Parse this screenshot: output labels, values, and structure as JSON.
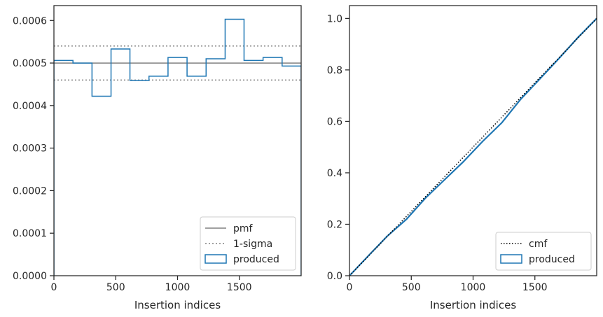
{
  "chart_data": [
    {
      "type": "histogram",
      "xlabel": "Insertion indices",
      "ylabel": "",
      "xlim": [
        0,
        2000
      ],
      "ylim": [
        0,
        0.000635
      ],
      "xticks": [
        0,
        500,
        1000,
        1500
      ],
      "yticks": [
        0,
        0.0001,
        0.0002,
        0.0003,
        0.0004,
        0.0005,
        0.0006
      ],
      "ytick_labels": [
        "0.0000",
        "0.0001",
        "0.0002",
        "0.0003",
        "0.0004",
        "0.0005",
        "0.0006"
      ],
      "pmf": 0.0005,
      "sigma_band": [
        0.00046,
        0.00054
      ],
      "bin_edges": [
        0,
        154,
        308,
        462,
        615,
        769,
        923,
        1077,
        1231,
        1385,
        1538,
        1692,
        1846,
        2000
      ],
      "bin_values": [
        0.000506,
        0.0005,
        0.000422,
        0.000533,
        0.000459,
        0.000469,
        0.000513,
        0.000469,
        0.00051,
        0.000603,
        0.000506,
        0.000513,
        0.000493
      ],
      "legend": [
        "pmf",
        "1-sigma",
        "produced"
      ],
      "legend_position": "lower-right",
      "colors": {
        "pmf": "#808080",
        "sigma": "#808080",
        "produced": "#1f77b4"
      }
    },
    {
      "type": "line",
      "xlabel": "Insertion indices",
      "ylabel": "",
      "xlim": [
        0,
        2000
      ],
      "ylim": [
        0,
        1.05
      ],
      "xticks": [
        0,
        500,
        1000,
        1500
      ],
      "yticks": [
        0,
        0.2,
        0.4,
        0.6,
        0.8,
        1.0
      ],
      "ytick_labels": [
        "0.0",
        "0.2",
        "0.4",
        "0.6",
        "0.8",
        "1.0"
      ],
      "cmf": {
        "x": [
          0,
          2000
        ],
        "y": [
          0,
          1.0
        ]
      },
      "produced": {
        "x": [
          0,
          154,
          308,
          462,
          615,
          769,
          923,
          1077,
          1231,
          1385,
          1538,
          1692,
          1846,
          2000
        ],
        "y": [
          0,
          0.078,
          0.155,
          0.22,
          0.302,
          0.373,
          0.444,
          0.522,
          0.594,
          0.686,
          0.764,
          0.843,
          0.925,
          1.0
        ]
      },
      "legend": [
        "cmf",
        "produced"
      ],
      "legend_position": "lower-right",
      "colors": {
        "cmf": "#000000",
        "produced": "#1f77b4"
      }
    }
  ]
}
